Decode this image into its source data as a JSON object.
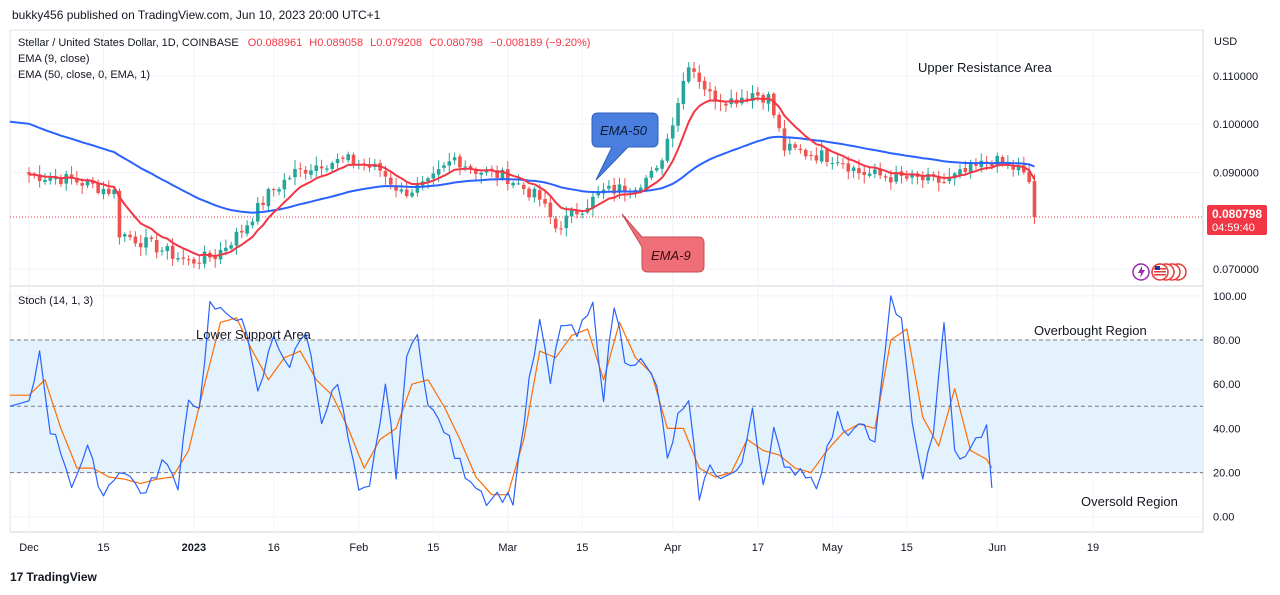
{
  "header": {
    "published_by": "bukky456 published on TradingView.com, Jun 10, 2023 20:00 UTC+1"
  },
  "legend": {
    "symbol_line": "Stellar / United States Dollar, 1D, COINBASE",
    "open": "O0.088961",
    "high": "H0.089058",
    "low": "L0.079208",
    "close": "C0.080798",
    "change": "−0.008189 (−9.20%)",
    "ema9": "EMA (9, close)",
    "ema50": "EMA (50, close, 0, EMA, 1)",
    "stoch": "Stoch (14, 1, 3)"
  },
  "annotations": {
    "upper_resistance": "Upper Resistance Area",
    "lower_support": "Lower Support Area",
    "overbought": "Overbought Region",
    "oversold": "Oversold Region",
    "ema50_callout": "EMA-50",
    "ema9_callout": "EMA-9"
  },
  "price_tag": {
    "price": "0.080798",
    "countdown": "04:59:40"
  },
  "footer": {
    "brand": "TradingView",
    "brand_mark": "17"
  },
  "colors": {
    "up": "#26a69a",
    "down": "#ef5350",
    "ema9": "#f23645",
    "ema50": "#2962ff",
    "stoch_k": "#2962ff",
    "stoch_d": "#ff6d00",
    "band": "#e3f2fd",
    "callout_blue": "#4a7fe0",
    "callout_red": "#ef6f78"
  },
  "chart_data": [
    {
      "type": "candlestick",
      "title": "Stellar / United States Dollar, 1D, COINBASE",
      "currency_label": "USD",
      "y_ticks": [
        "0.110000",
        "0.100000",
        "0.090000",
        "0.070000"
      ],
      "y_tick_values": [
        0.11,
        0.1,
        0.09,
        0.07
      ],
      "ylim": [
        0.0665,
        0.1195
      ],
      "x_ticks": [
        "Dec",
        "15",
        "2023",
        "16",
        "Feb",
        "15",
        "Mar",
        "15",
        "Apr",
        "17",
        "May",
        "15",
        "Jun",
        "19"
      ],
      "x_tick_days": [
        0,
        14,
        31,
        46,
        62,
        76,
        90,
        104,
        121,
        137,
        151,
        165,
        182,
        200
      ],
      "x_start": "2022-11-27",
      "x_end": "2023-06-19",
      "last_close": 0.080798,
      "close_anchors": [
        [
          0,
          0.0896
        ],
        [
          8,
          0.0885
        ],
        [
          16,
          0.086
        ],
        [
          17,
          0.0775
        ],
        [
          24,
          0.0745
        ],
        [
          30,
          0.0715
        ],
        [
          35,
          0.0728
        ],
        [
          40,
          0.078
        ],
        [
          45,
          0.0855
        ],
        [
          50,
          0.09
        ],
        [
          55,
          0.092
        ],
        [
          60,
          0.0925
        ],
        [
          66,
          0.0905
        ],
        [
          70,
          0.0858
        ],
        [
          75,
          0.0875
        ],
        [
          80,
          0.093
        ],
        [
          84,
          0.0905
        ],
        [
          90,
          0.089
        ],
        [
          96,
          0.0845
        ],
        [
          99,
          0.0785
        ],
        [
          103,
          0.082
        ],
        [
          108,
          0.086
        ],
        [
          113,
          0.087
        ],
        [
          118,
          0.09
        ],
        [
          120,
          0.097
        ],
        [
          124,
          0.113
        ],
        [
          128,
          0.106
        ],
        [
          132,
          0.105
        ],
        [
          136,
          0.1065
        ],
        [
          139,
          0.1055
        ],
        [
          142,
          0.095
        ],
        [
          146,
          0.094
        ],
        [
          152,
          0.093
        ],
        [
          156,
          0.09
        ],
        [
          162,
          0.089
        ],
        [
          168,
          0.0885
        ],
        [
          172,
          0.088
        ],
        [
          177,
          0.0905
        ],
        [
          181,
          0.0925
        ],
        [
          186,
          0.0905
        ],
        [
          188,
          0.088
        ],
        [
          189,
          0.0808
        ]
      ],
      "ema9": "EMA (9, close)",
      "ema50": "EMA (50, close, 0, EMA, 1)"
    },
    {
      "type": "line",
      "title": "Stoch (14, 1, 3)",
      "y_ticks": [
        "100.00",
        "80.00",
        "60.00",
        "40.00",
        "20.00",
        "0.00"
      ],
      "y_tick_values": [
        100,
        80,
        60,
        40,
        20,
        0
      ],
      "ylim": [
        -6,
        104
      ],
      "bands": {
        "upper": 80,
        "middle": 50,
        "lower": 20
      },
      "k_anchors": [
        [
          0,
          50
        ],
        [
          2,
          75
        ],
        [
          4,
          40
        ],
        [
          6,
          30
        ],
        [
          8,
          15
        ],
        [
          11,
          30
        ],
        [
          14,
          10
        ],
        [
          17,
          22
        ],
        [
          20,
          15
        ],
        [
          22,
          10
        ],
        [
          25,
          25
        ],
        [
          28,
          15
        ],
        [
          30,
          55
        ],
        [
          32,
          48
        ],
        [
          34,
          96
        ],
        [
          37,
          90
        ],
        [
          40,
          92
        ],
        [
          43,
          55
        ],
        [
          46,
          82
        ],
        [
          49,
          68
        ],
        [
          52,
          85
        ],
        [
          55,
          45
        ],
        [
          58,
          60
        ],
        [
          60,
          35
        ],
        [
          62,
          10
        ],
        [
          64,
          12
        ],
        [
          67,
          60
        ],
        [
          69,
          20
        ],
        [
          71,
          70
        ],
        [
          73,
          85
        ],
        [
          75,
          50
        ],
        [
          78,
          40
        ],
        [
          80,
          28
        ],
        [
          82,
          20
        ],
        [
          84,
          15
        ],
        [
          86,
          8
        ],
        [
          88,
          10
        ],
        [
          91,
          8
        ],
        [
          94,
          60
        ],
        [
          96,
          88
        ],
        [
          98,
          60
        ],
        [
          100,
          88
        ],
        [
          103,
          82
        ],
        [
          106,
          95
        ],
        [
          108,
          55
        ],
        [
          110,
          96
        ],
        [
          112,
          72
        ],
        [
          115,
          70
        ],
        [
          118,
          60
        ],
        [
          120,
          25
        ],
        [
          122,
          45
        ],
        [
          124,
          50
        ],
        [
          126,
          10
        ],
        [
          128,
          22
        ],
        [
          131,
          18
        ],
        [
          134,
          22
        ],
        [
          136,
          50
        ],
        [
          138,
          15
        ],
        [
          140,
          40
        ],
        [
          142,
          20
        ],
        [
          145,
          22
        ],
        [
          148,
          15
        ],
        [
          150,
          30
        ],
        [
          152,
          45
        ],
        [
          154,
          38
        ],
        [
          156,
          45
        ],
        [
          159,
          32
        ],
        [
          162,
          98
        ],
        [
          164,
          90
        ],
        [
          166,
          40
        ],
        [
          168,
          20
        ],
        [
          170,
          35
        ],
        [
          172,
          90
        ],
        [
          174,
          30
        ],
        [
          176,
          25
        ],
        [
          178,
          35
        ],
        [
          180,
          40
        ],
        [
          181,
          12
        ]
      ],
      "d_anchors": [
        [
          0,
          55
        ],
        [
          3,
          62
        ],
        [
          6,
          40
        ],
        [
          9,
          22
        ],
        [
          12,
          22
        ],
        [
          15,
          18
        ],
        [
          18,
          17
        ],
        [
          21,
          15
        ],
        [
          24,
          17
        ],
        [
          27,
          18
        ],
        [
          30,
          30
        ],
        [
          33,
          60
        ],
        [
          36,
          88
        ],
        [
          39,
          90
        ],
        [
          42,
          75
        ],
        [
          45,
          62
        ],
        [
          48,
          72
        ],
        [
          51,
          75
        ],
        [
          54,
          62
        ],
        [
          57,
          55
        ],
        [
          60,
          40
        ],
        [
          63,
          22
        ],
        [
          66,
          35
        ],
        [
          69,
          40
        ],
        [
          72,
          60
        ],
        [
          75,
          62
        ],
        [
          78,
          50
        ],
        [
          81,
          35
        ],
        [
          84,
          18
        ],
        [
          87,
          10
        ],
        [
          90,
          10
        ],
        [
          93,
          35
        ],
        [
          96,
          75
        ],
        [
          99,
          72
        ],
        [
          102,
          82
        ],
        [
          105,
          85
        ],
        [
          108,
          62
        ],
        [
          111,
          88
        ],
        [
          114,
          72
        ],
        [
          117,
          65
        ],
        [
          120,
          40
        ],
        [
          123,
          40
        ],
        [
          126,
          22
        ],
        [
          129,
          18
        ],
        [
          132,
          20
        ],
        [
          135,
          35
        ],
        [
          138,
          30
        ],
        [
          141,
          28
        ],
        [
          144,
          22
        ],
        [
          147,
          20
        ],
        [
          150,
          30
        ],
        [
          153,
          38
        ],
        [
          156,
          42
        ],
        [
          159,
          40
        ],
        [
          162,
          80
        ],
        [
          165,
          85
        ],
        [
          168,
          45
        ],
        [
          171,
          32
        ],
        [
          174,
          58
        ],
        [
          177,
          30
        ],
        [
          180,
          26
        ],
        [
          181,
          22
        ]
      ]
    }
  ]
}
